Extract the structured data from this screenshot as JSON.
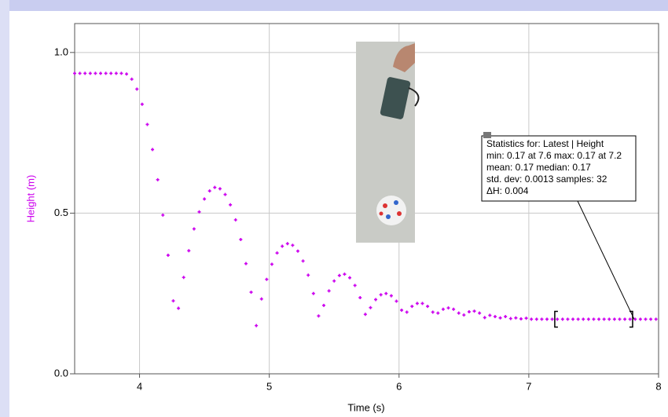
{
  "chart_data": {
    "type": "scatter",
    "xlabel": "Time (s)",
    "ylabel": "Height (m)",
    "color": "#cc00ee",
    "x": [
      3.5,
      3.54,
      3.58,
      3.62,
      3.66,
      3.7,
      3.74,
      3.78,
      3.82,
      3.86,
      3.9,
      3.94,
      3.98,
      4.02,
      4.06,
      4.1,
      4.14,
      4.18,
      4.22,
      4.26,
      4.3,
      4.34,
      4.38,
      4.42,
      4.46,
      4.5,
      4.54,
      4.58,
      4.62,
      4.66,
      4.7,
      4.74,
      4.78,
      4.82,
      4.86,
      4.9,
      4.94,
      4.98,
      5.02,
      5.06,
      5.1,
      5.14,
      5.18,
      5.22,
      5.26,
      5.3,
      5.34,
      5.38,
      5.42,
      5.46,
      5.5,
      5.54,
      5.58,
      5.62,
      5.66,
      5.7,
      5.74,
      5.78,
      5.82,
      5.86,
      5.9,
      5.94,
      5.98,
      6.02,
      6.06,
      6.1,
      6.14,
      6.18,
      6.22,
      6.26,
      6.3,
      6.34,
      6.38,
      6.42,
      6.46,
      6.5,
      6.54,
      6.58,
      6.62,
      6.66,
      6.7,
      6.74,
      6.78,
      6.82,
      6.86,
      6.9,
      6.94,
      6.98,
      7.02,
      7.06,
      7.1,
      7.14,
      7.18,
      7.22,
      7.26,
      7.3,
      7.34,
      7.38,
      7.42,
      7.46,
      7.5,
      7.54,
      7.58,
      7.62,
      7.66,
      7.7,
      7.74,
      7.78,
      7.82,
      7.86,
      7.9,
      7.94,
      7.98
    ],
    "values": [
      0.935,
      0.935,
      0.935,
      0.935,
      0.935,
      0.935,
      0.935,
      0.935,
      0.935,
      0.935,
      0.933,
      0.917,
      0.886,
      0.839,
      0.776,
      0.698,
      0.604,
      0.494,
      0.369,
      0.227,
      0.204,
      0.3,
      0.383,
      0.451,
      0.504,
      0.544,
      0.569,
      0.58,
      0.576,
      0.558,
      0.526,
      0.479,
      0.418,
      0.343,
      0.254,
      0.15,
      0.233,
      0.294,
      0.341,
      0.376,
      0.397,
      0.405,
      0.4,
      0.382,
      0.351,
      0.307,
      0.25,
      0.18,
      0.213,
      0.258,
      0.289,
      0.306,
      0.31,
      0.299,
      0.275,
      0.237,
      0.185,
      0.206,
      0.231,
      0.246,
      0.25,
      0.243,
      0.226,
      0.198,
      0.192,
      0.21,
      0.219,
      0.219,
      0.21,
      0.192,
      0.189,
      0.201,
      0.205,
      0.201,
      0.189,
      0.183,
      0.193,
      0.195,
      0.189,
      0.175,
      0.182,
      0.178,
      0.174,
      0.178,
      0.172,
      0.174,
      0.171,
      0.173,
      0.17,
      0.17,
      0.17,
      0.17,
      0.17,
      0.17,
      0.17,
      0.17,
      0.17,
      0.17,
      0.17,
      0.17,
      0.17,
      0.17,
      0.17,
      0.17,
      0.17,
      0.17,
      0.17,
      0.17,
      0.17,
      0.17,
      0.17,
      0.17,
      0.17
    ],
    "xlim": [
      3.5,
      8
    ],
    "xticks": [
      4,
      5,
      6,
      7,
      8
    ],
    "ylim": [
      0,
      1.09
    ],
    "yticks": [
      {
        "value": 0,
        "label": "0.0"
      },
      {
        "value": 0.5,
        "label": "0.5"
      },
      {
        "value": 1,
        "label": "1.0"
      }
    ],
    "grid": true,
    "selection": [
      7.2,
      7.8
    ],
    "annotation": [
      "Statistics for: Latest | Height",
      "min: 0.17 at 7.6 max: 0.17 at 7.2",
      "mean: 0.17 median: 0.17",
      "std. dev: 0.0013 samples: 32",
      "ΔH: 0.004"
    ]
  }
}
